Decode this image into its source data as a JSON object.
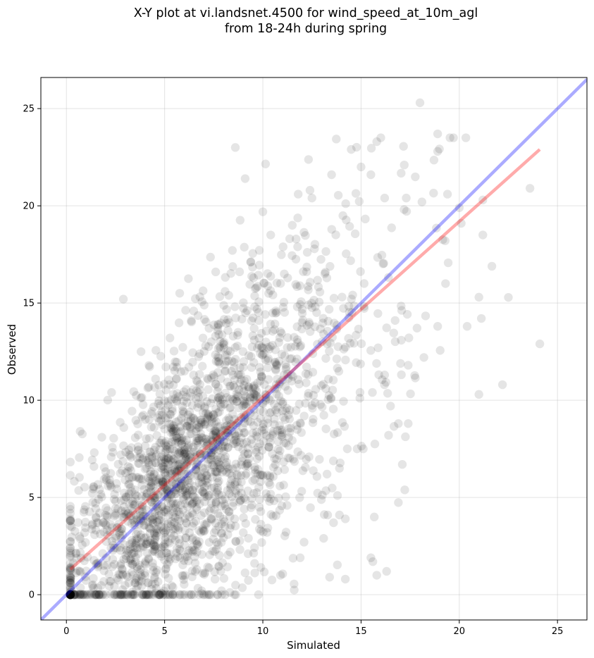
{
  "chart_data": {
    "type": "scatter",
    "title_lines": [
      "X-Y plot at vi.landsnet.4500 for wind_speed_at_10m_agl",
      "from 18-24h during spring"
    ],
    "xlabel": "Simulated",
    "ylabel": "Observed",
    "xlim": [
      -1.3,
      26.5
    ],
    "ylim": [
      -1.3,
      26.6
    ],
    "xticks": [
      0,
      5,
      10,
      15,
      20,
      25
    ],
    "yticks": [
      0,
      5,
      10,
      15,
      20,
      25
    ],
    "grid": true,
    "colors": {
      "points": "#000000",
      "one_to_one_line": "#0000ff",
      "fit_line": "#ff0000",
      "grid": "#b0b0b0"
    },
    "point_opacity": 0.1,
    "one_to_one_line": {
      "x": [
        -1.3,
        26.5
      ],
      "y": [
        -1.3,
        26.5
      ]
    },
    "fit_line": {
      "x": [
        0.2,
        24.1
      ],
      "y": [
        1.3,
        22.9
      ]
    },
    "point_cloud": {
      "n_points": 2200,
      "x_range": [
        0.2,
        24.1
      ],
      "y_range": [
        0.0,
        25.3
      ],
      "note_points": [
        [
          18.0,
          25.3
        ],
        [
          8.6,
          23.0
        ],
        [
          14.5,
          22.9
        ],
        [
          15.8,
          23.3
        ],
        [
          18.9,
          23.7
        ],
        [
          18.9,
          22.8
        ],
        [
          17.2,
          22.1
        ],
        [
          13.5,
          21.6
        ],
        [
          15.0,
          22.0
        ],
        [
          15.5,
          21.6
        ],
        [
          9.1,
          21.4
        ],
        [
          11.8,
          20.6
        ],
        [
          12.4,
          20.8
        ],
        [
          16.2,
          20.4
        ],
        [
          17.3,
          20.4
        ],
        [
          18.1,
          20.2
        ],
        [
          19.4,
          20.6
        ],
        [
          20.0,
          19.9
        ],
        [
          21.2,
          20.3
        ],
        [
          20.1,
          19.1
        ],
        [
          21.2,
          18.5
        ],
        [
          23.6,
          20.9
        ],
        [
          24.1,
          12.9
        ],
        [
          22.2,
          10.8
        ],
        [
          21.0,
          10.3
        ],
        [
          20.4,
          13.8
        ],
        [
          21.0,
          15.3
        ],
        [
          19.3,
          16.0
        ],
        [
          18.9,
          13.8
        ],
        [
          18.2,
          12.2
        ],
        [
          17.4,
          8.8
        ],
        [
          17.1,
          6.7
        ],
        [
          16.3,
          1.2
        ],
        [
          15.8,
          1.0
        ],
        [
          15.5,
          1.9
        ],
        [
          15.6,
          1.7
        ],
        [
          14.2,
          0.8
        ],
        [
          13.4,
          0.9
        ],
        [
          14.2,
          3.9
        ],
        [
          13.6,
          3.7
        ],
        [
          13.3,
          4.1
        ],
        [
          13.9,
          4.1
        ],
        [
          13.8,
          5.1
        ],
        [
          13.9,
          6.5
        ],
        [
          14.3,
          7.5
        ],
        [
          14.8,
          7.5
        ],
        [
          11.9,
          1.9
        ],
        [
          12.1,
          2.7
        ],
        [
          10.9,
          1.0
        ],
        [
          9.9,
          1.4
        ],
        [
          7.9,
          0.2
        ],
        [
          7.7,
          0.0
        ],
        [
          2.9,
          15.2
        ],
        [
          3.8,
          12.5
        ],
        [
          2.3,
          10.4
        ],
        [
          0.7,
          8.4
        ],
        [
          7.6,
          16.6
        ],
        [
          10.4,
          18.5
        ],
        [
          11.5,
          19.0
        ],
        [
          12.5,
          20.4
        ],
        [
          16.5,
          9.7
        ],
        [
          16.4,
          8.2
        ],
        [
          16.9,
          8.8
        ],
        [
          16.2,
          11.3
        ],
        [
          17.4,
          11.8
        ]
      ]
    }
  }
}
